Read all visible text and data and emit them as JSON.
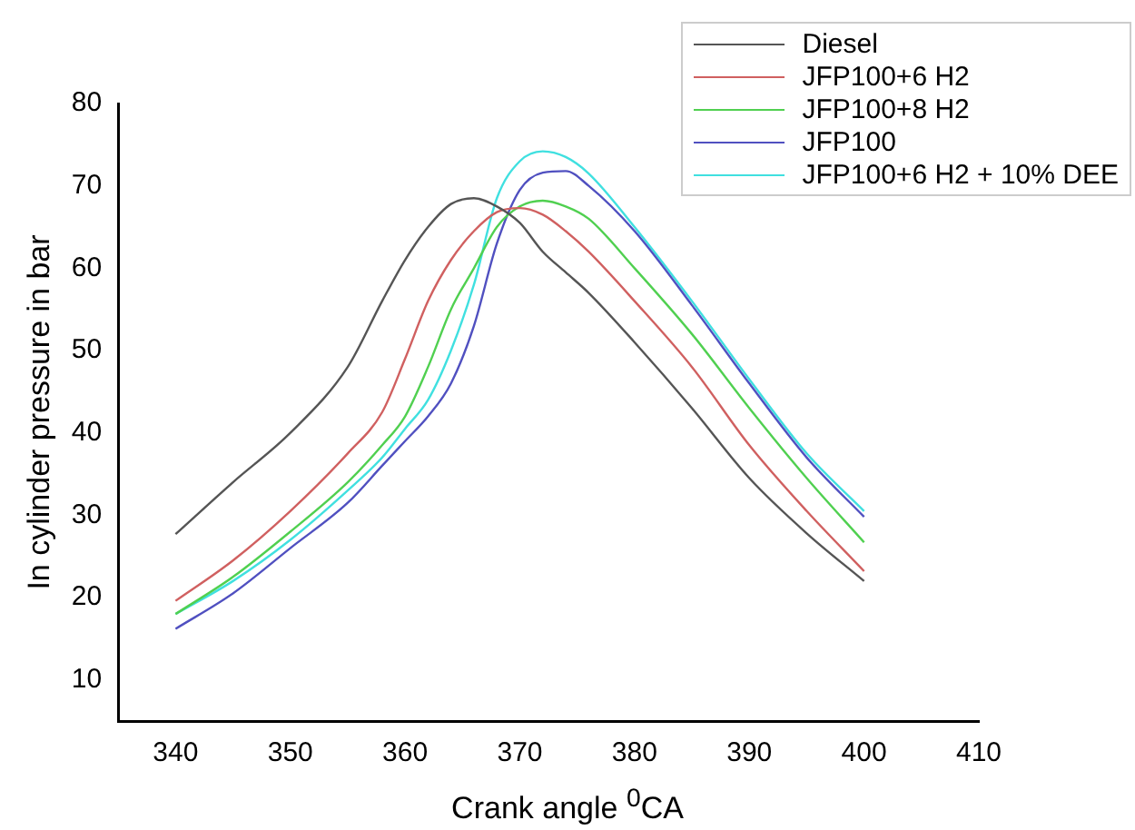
{
  "chart_data": {
    "type": "line",
    "xlabel": "Crank angle $^{0}$CA",
    "ylabel": "In cylinder pressure in bar",
    "x": [
      340,
      345,
      350,
      355,
      358,
      360,
      362,
      364,
      366,
      368,
      370,
      372,
      374,
      376,
      380,
      385,
      390,
      395,
      400
    ],
    "xlim": [
      335,
      410
    ],
    "xticks": [
      340,
      350,
      360,
      370,
      380,
      390,
      400,
      410
    ],
    "ylim": [
      5,
      80
    ],
    "yticks": [
      10,
      20,
      30,
      40,
      50,
      60,
      70,
      80
    ],
    "grid": false,
    "legend": "top right",
    "marker": "none",
    "line_style": "solid",
    "series": [
      {
        "name": "Diesel",
        "color": "#555555",
        "values": [
          27.7,
          34,
          40,
          48,
          56,
          61,
          65,
          67.8,
          68.5,
          67.5,
          65.5,
          62,
          59.5,
          57,
          51,
          43,
          34.5,
          27.8,
          22
        ]
      },
      {
        "name": "JFP100+6 H2",
        "color": "#d06060",
        "values": [
          19.6,
          24.5,
          30.5,
          37.5,
          42.5,
          49,
          56,
          61,
          64.5,
          66.8,
          67.3,
          66.5,
          64.5,
          62,
          56,
          48,
          38.5,
          30.5,
          23.2
        ]
      },
      {
        "name": "JFP100+8 H2",
        "color": "#50d050",
        "values": [
          18,
          22.5,
          28,
          34,
          38.5,
          42,
          48,
          55,
          60,
          65,
          67.5,
          68.2,
          67.5,
          66,
          60,
          52,
          43,
          34.5,
          26.7
        ]
      },
      {
        "name": "JFP100",
        "color": "#5050c0",
        "values": [
          16.2,
          20.5,
          26,
          31.5,
          36,
          39,
          42,
          46,
          53,
          63,
          69.5,
          71.6,
          71.8,
          70,
          64.5,
          55.5,
          46,
          37,
          29.8
        ]
      },
      {
        "name": "JFP100+6 H2 + 10% DEE",
        "color": "#40e0e0",
        "values": [
          18,
          22,
          27,
          33,
          37,
          40.5,
          44,
          50,
          58,
          68.5,
          73,
          74.2,
          73.5,
          71.5,
          65,
          56,
          46.5,
          37.5,
          30.5
        ]
      }
    ]
  }
}
